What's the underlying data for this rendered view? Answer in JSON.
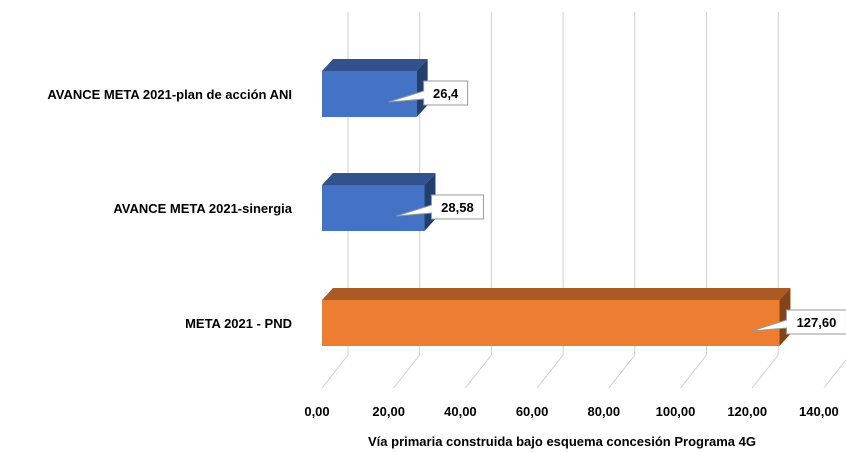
{
  "chart_data": {
    "type": "bar",
    "orientation": "horizontal",
    "three_d": true,
    "categories": [
      "AVANCE META 2021-plan de acción ANI",
      "AVANCE META 2021-sinergia",
      "META 2021 - PND"
    ],
    "values": [
      26.4,
      28.58,
      127.6
    ],
    "data_labels": [
      "26,4",
      "28,58",
      "127,60"
    ],
    "bar_colors": [
      "#4472C4",
      "#4472C4",
      "#ED7D31"
    ],
    "xlabel": "Vía primaria  construida bajo esquema concesión Programa  4G",
    "ylabel": "",
    "xlim": [
      0,
      140
    ],
    "xticks": [
      "0,00",
      "20,00",
      "40,00",
      "60,00",
      "80,00",
      "100,00",
      "120,00",
      "140,00"
    ],
    "grid": true,
    "legend": "none"
  }
}
